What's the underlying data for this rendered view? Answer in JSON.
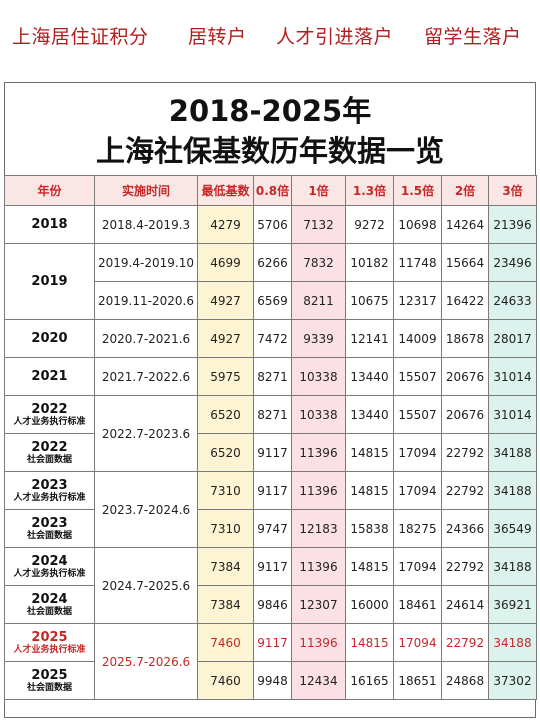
{
  "nav": {
    "items": [
      "上海居住证积分",
      "居转户",
      "人才引进落户",
      "留学生落户"
    ]
  },
  "title": {
    "line1": "2018-2025年",
    "line2": "上海社保基数历年数据一览"
  },
  "table": {
    "headers": [
      "年份",
      "实施时间",
      "最低基数",
      "0.8倍",
      "1倍",
      "1.3倍",
      "1.5倍",
      "2倍",
      "3倍"
    ],
    "rows": [
      {
        "year": "2018",
        "sub": "",
        "period": "2018.4-2019.3",
        "values": [
          "4279",
          "5706",
          "7132",
          "9272",
          "10698",
          "14264",
          "21396"
        ]
      },
      {
        "year": "2019",
        "sub": "",
        "period": "2019.4-2019.10",
        "values": [
          "4699",
          "6266",
          "7832",
          "10182",
          "11748",
          "15664",
          "23496"
        ]
      },
      {
        "year": "",
        "sub": "",
        "period": "2019.11-2020.6",
        "values": [
          "4927",
          "6569",
          "8211",
          "10675",
          "12317",
          "16422",
          "24633"
        ]
      },
      {
        "year": "2020",
        "sub": "",
        "period": "2020.7-2021.6",
        "values": [
          "4927",
          "7472",
          "9339",
          "12141",
          "14009",
          "18678",
          "28017"
        ]
      },
      {
        "year": "2021",
        "sub": "",
        "period": "2021.7-2022.6",
        "values": [
          "5975",
          "8271",
          "10338",
          "13440",
          "15507",
          "20676",
          "31014"
        ]
      },
      {
        "year": "2022",
        "sub": "人才业务执行标准",
        "period": "2022.7-2023.6",
        "values": [
          "6520",
          "8271",
          "10338",
          "13440",
          "15507",
          "20676",
          "31014"
        ]
      },
      {
        "year": "2022",
        "sub": "社会面数据",
        "period": "",
        "values": [
          "6520",
          "9117",
          "11396",
          "14815",
          "17094",
          "22792",
          "34188"
        ]
      },
      {
        "year": "2023",
        "sub": "人才业务执行标准",
        "period": "2023.7-2024.6",
        "values": [
          "7310",
          "9117",
          "11396",
          "14815",
          "17094",
          "22792",
          "34188"
        ]
      },
      {
        "year": "2023",
        "sub": "社会面数据",
        "period": "",
        "values": [
          "7310",
          "9747",
          "12183",
          "15838",
          "18275",
          "24366",
          "36549"
        ]
      },
      {
        "year": "2024",
        "sub": "人才业务执行标准",
        "period": "2024.7-2025.6",
        "values": [
          "7384",
          "9117",
          "11396",
          "14815",
          "17094",
          "22792",
          "34188"
        ]
      },
      {
        "year": "2024",
        "sub": "社会面数据",
        "period": "",
        "values": [
          "7384",
          "9846",
          "12307",
          "16000",
          "18461",
          "24614",
          "36921"
        ]
      },
      {
        "year": "2025",
        "sub": "人才业务执行标准",
        "period": "2025.7-2026.6",
        "values": [
          "7460",
          "9117",
          "11396",
          "14815",
          "17094",
          "22792",
          "34188"
        ]
      },
      {
        "year": "2025",
        "sub": "社会面数据",
        "period": "",
        "values": [
          "7460",
          "9948",
          "12434",
          "16165",
          "18651",
          "24868",
          "37302"
        ]
      }
    ]
  },
  "colors": {
    "accent_red": "#c62828",
    "header_bg": "#fbe6e6",
    "base_col": "#fdf4d3",
    "one_col": "#fbe1e6",
    "three_col": "#dcf2ec"
  }
}
